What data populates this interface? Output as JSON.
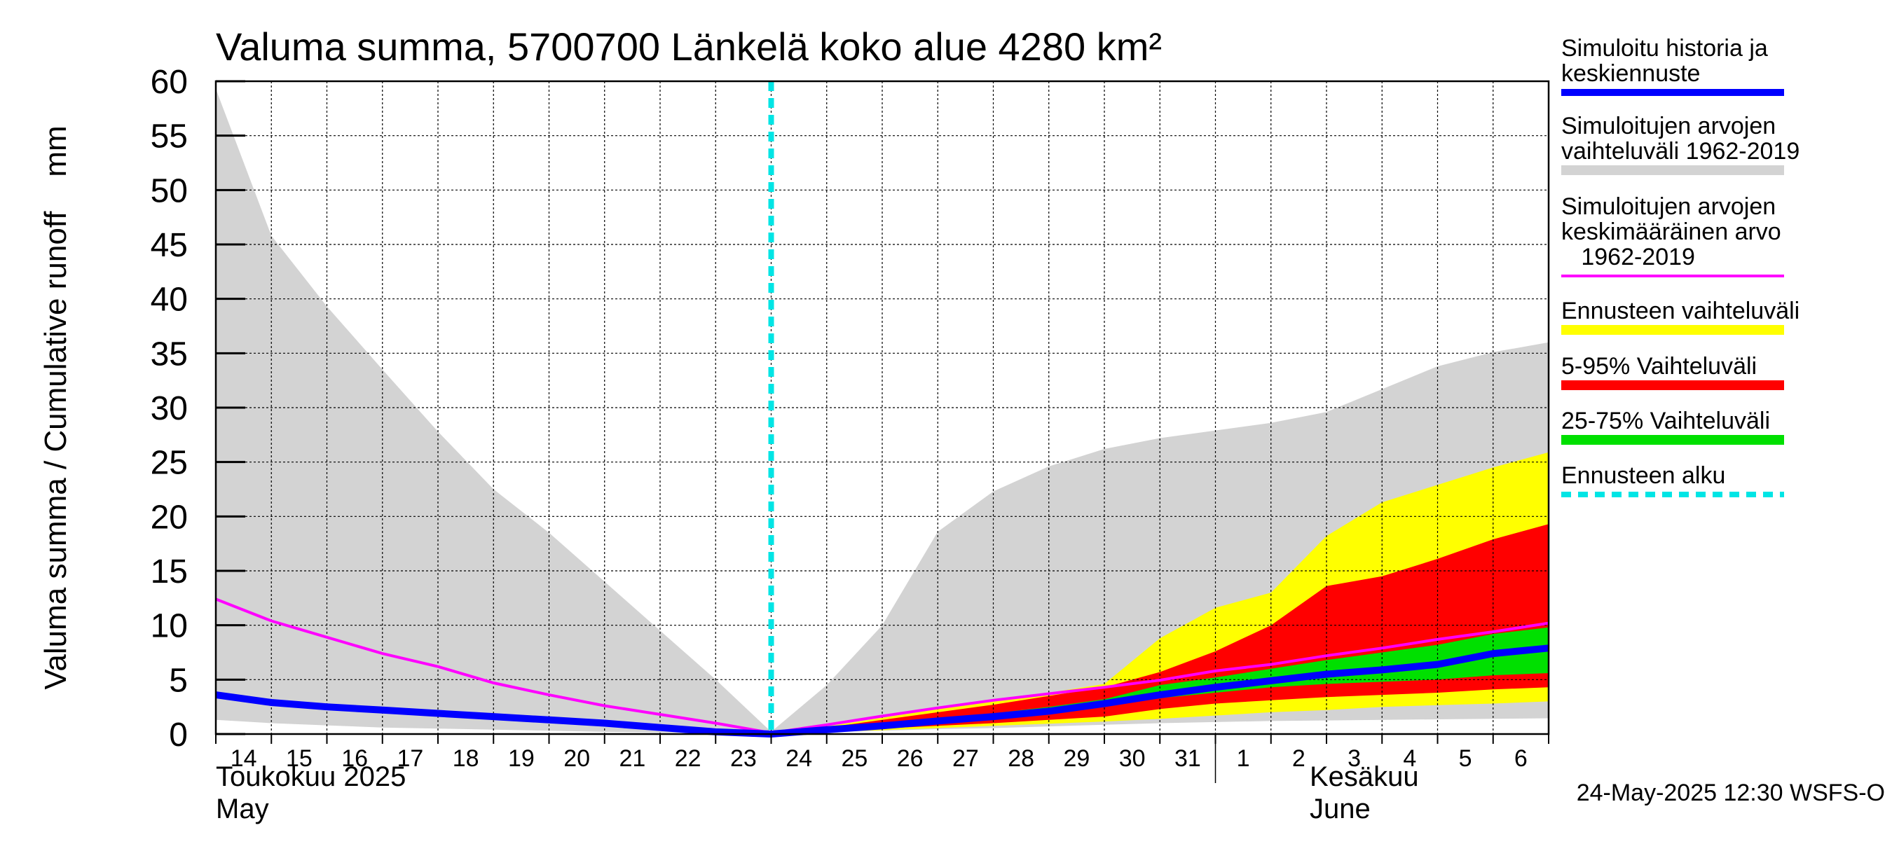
{
  "chart_data": {
    "type": "area",
    "title": "Valuma summa, 5700700 Länkelä koko alue 4280 km²",
    "ylabel": "Valuma summa / Cumulative runoff    mm",
    "ylim": [
      0,
      60
    ],
    "yticks": [
      0,
      5,
      10,
      15,
      20,
      25,
      30,
      35,
      40,
      45,
      50,
      55,
      60
    ],
    "x_day_labels": [
      "14",
      "15",
      "16",
      "17",
      "18",
      "19",
      "20",
      "21",
      "22",
      "23",
      "24",
      "25",
      "26",
      "27",
      "28",
      "29",
      "30",
      "31",
      "1",
      "2",
      "3",
      "4",
      "5",
      "6"
    ],
    "month_labels": [
      {
        "fi": "Toukokuu  2025",
        "en": "May"
      },
      {
        "fi": "Kesäkuu",
        "en": "June"
      }
    ],
    "forecast_start_index": 10,
    "hist_range_upper": [
      59.3,
      45.8,
      39.3,
      33.5,
      27.8,
      22.5,
      18.5,
      14.0,
      9.5,
      5.0,
      0.2,
      4.5,
      10.0,
      18.6,
      22.3,
      24.6,
      26.2,
      27.2,
      27.9,
      28.6,
      29.6,
      31.7,
      33.8,
      35.1,
      36.0
    ],
    "hist_range_lower": [
      1.3,
      1.0,
      0.8,
      0.6,
      0.5,
      0.4,
      0.3,
      0.2,
      0.15,
      0.1,
      0.0,
      0.15,
      0.3,
      0.45,
      0.55,
      0.7,
      0.85,
      1.0,
      1.1,
      1.2,
      1.25,
      1.3,
      1.35,
      1.4,
      1.45
    ],
    "hist_mean": [
      12.4,
      10.4,
      8.9,
      7.4,
      6.2,
      4.7,
      3.6,
      2.6,
      1.8,
      1.0,
      0.1,
      0.85,
      1.65,
      2.4,
      3.1,
      3.7,
      4.3,
      4.95,
      5.8,
      6.4,
      7.2,
      7.9,
      8.7,
      9.4,
      10.2
    ],
    "sim_history_and_mean_forecast": [
      3.6,
      2.9,
      2.5,
      2.2,
      1.9,
      1.6,
      1.3,
      1.0,
      0.6,
      0.2,
      0.0,
      0.4,
      0.75,
      1.2,
      1.6,
      2.1,
      2.8,
      3.6,
      4.3,
      4.9,
      5.5,
      5.9,
      6.4,
      7.4,
      7.9
    ],
    "ens_min": [
      0,
      0,
      0,
      0,
      0,
      0,
      0,
      0,
      0,
      0,
      0.0,
      0.2,
      0.35,
      0.55,
      0.75,
      0.95,
      1.15,
      1.4,
      1.7,
      2.0,
      2.2,
      2.5,
      2.65,
      2.8,
      3.0
    ],
    "ens_max": [
      0,
      0,
      0,
      0,
      0,
      0,
      0,
      0,
      0,
      0,
      0.0,
      0.7,
      1.5,
      2.3,
      3.0,
      3.8,
      4.6,
      8.8,
      11.6,
      13.0,
      18.2,
      21.3,
      22.9,
      24.5,
      25.9
    ],
    "p5": [
      0,
      0,
      0,
      0,
      0,
      0,
      0,
      0,
      0,
      0,
      0.0,
      0.3,
      0.5,
      0.75,
      1.0,
      1.3,
      1.6,
      2.3,
      2.8,
      3.1,
      3.4,
      3.6,
      3.8,
      4.1,
      4.3
    ],
    "p95": [
      0,
      0,
      0,
      0,
      0,
      0,
      0,
      0,
      0,
      0,
      0.0,
      0.6,
      1.3,
      2.0,
      2.7,
      3.5,
      4.3,
      5.7,
      7.6,
      10.0,
      13.6,
      14.5,
      16.1,
      17.9,
      19.3
    ],
    "p25": [
      0,
      0,
      0,
      0,
      0,
      0,
      0,
      0,
      0,
      0,
      0.0,
      0.4,
      0.7,
      1.0,
      1.4,
      1.9,
      2.5,
      3.3,
      3.8,
      4.3,
      4.6,
      4.8,
      5.0,
      5.4,
      5.6
    ],
    "p75": [
      0,
      0,
      0,
      0,
      0,
      0,
      0,
      0,
      0,
      0,
      0.0,
      0.5,
      0.9,
      1.4,
      1.9,
      2.5,
      3.2,
      4.5,
      5.2,
      6.0,
      6.8,
      7.5,
      8.2,
      9.2,
      9.8
    ],
    "legend": [
      {
        "label": "Simuloitu historia ja keskiennuste",
        "color": "#0000ff",
        "style": "thick"
      },
      {
        "label": "Simuloitujen arvojen vaihteluväli 1962-2019",
        "color": "#d3d3d3",
        "style": "band"
      },
      {
        "label": "Simuloitujen arvojen keskimääräinen arvo 1962-2019",
        "color": "#ff00ff",
        "style": "line"
      },
      {
        "label": "Ennusteen vaihteluväli",
        "color": "#ffff00",
        "style": "band"
      },
      {
        "label": "5-95% Vaihteluväli",
        "color": "#ff0000",
        "style": "band"
      },
      {
        "label": "25-75% Vaihteluväli",
        "color": "#00e000",
        "style": "band"
      },
      {
        "label": "Ennusteen alku",
        "color": "#00e5e5",
        "style": "dashed"
      }
    ]
  },
  "legend_lines": [
    [
      "Simuloitu historia ja",
      "keskiennuste"
    ],
    [
      "Simuloitujen arvojen",
      "vaihteluväli 1962-2019"
    ],
    [
      "Simuloitujen arvojen",
      "keskimääräinen arvo",
      "   1962-2019"
    ],
    [
      "Ennusteen vaihteluväli"
    ],
    [
      "5-95% Vaihteluväli"
    ],
    [
      "25-75% Vaihteluväli"
    ],
    [
      "Ennusteen alku"
    ]
  ],
  "footer": "24-May-2025 12:30 WSFS-O"
}
